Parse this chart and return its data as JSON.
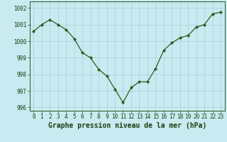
{
  "x": [
    0,
    1,
    2,
    3,
    4,
    5,
    6,
    7,
    8,
    9,
    10,
    11,
    12,
    13,
    14,
    15,
    16,
    17,
    18,
    19,
    20,
    21,
    22,
    23
  ],
  "y": [
    1000.6,
    1001.0,
    1001.3,
    1001.0,
    1000.7,
    1000.15,
    999.3,
    999.0,
    998.3,
    997.9,
    997.1,
    996.3,
    997.2,
    997.55,
    997.55,
    998.35,
    999.45,
    999.9,
    1000.2,
    1000.35,
    1000.85,
    1001.0,
    1001.65,
    1001.75
  ],
  "line_color": "#2d5a1b",
  "marker": "D",
  "marker_size": 2.2,
  "bg_color": "#c8eaf0",
  "grid_color": "#aaccd8",
  "xlabel": "Graphe pression niveau de la mer (hPa)",
  "xlabel_color": "#1a4010",
  "ylim": [
    995.8,
    1002.4
  ],
  "xlim": [
    -0.5,
    23.5
  ],
  "yticks": [
    996,
    997,
    998,
    999,
    1000,
    1001,
    1002
  ],
  "ytick_labels": [
    "996",
    "997",
    "998",
    "999",
    "1000",
    "1001",
    "1002"
  ],
  "xticks": [
    0,
    1,
    2,
    3,
    4,
    5,
    6,
    7,
    8,
    9,
    10,
    11,
    12,
    13,
    14,
    15,
    16,
    17,
    18,
    19,
    20,
    21,
    22,
    23
  ],
  "xtick_labels": [
    "0",
    "1",
    "2",
    "3",
    "4",
    "5",
    "6",
    "7",
    "8",
    "9",
    "10",
    "11",
    "12",
    "13",
    "14",
    "15",
    "16",
    "17",
    "18",
    "19",
    "20",
    "21",
    "22",
    "23"
  ],
  "tick_color": "#1a4010",
  "spine_color": "#2d5a1b",
  "label_fontsize": 6.5,
  "tick_fontsize": 5.5,
  "xlabel_fontsize": 7.0
}
